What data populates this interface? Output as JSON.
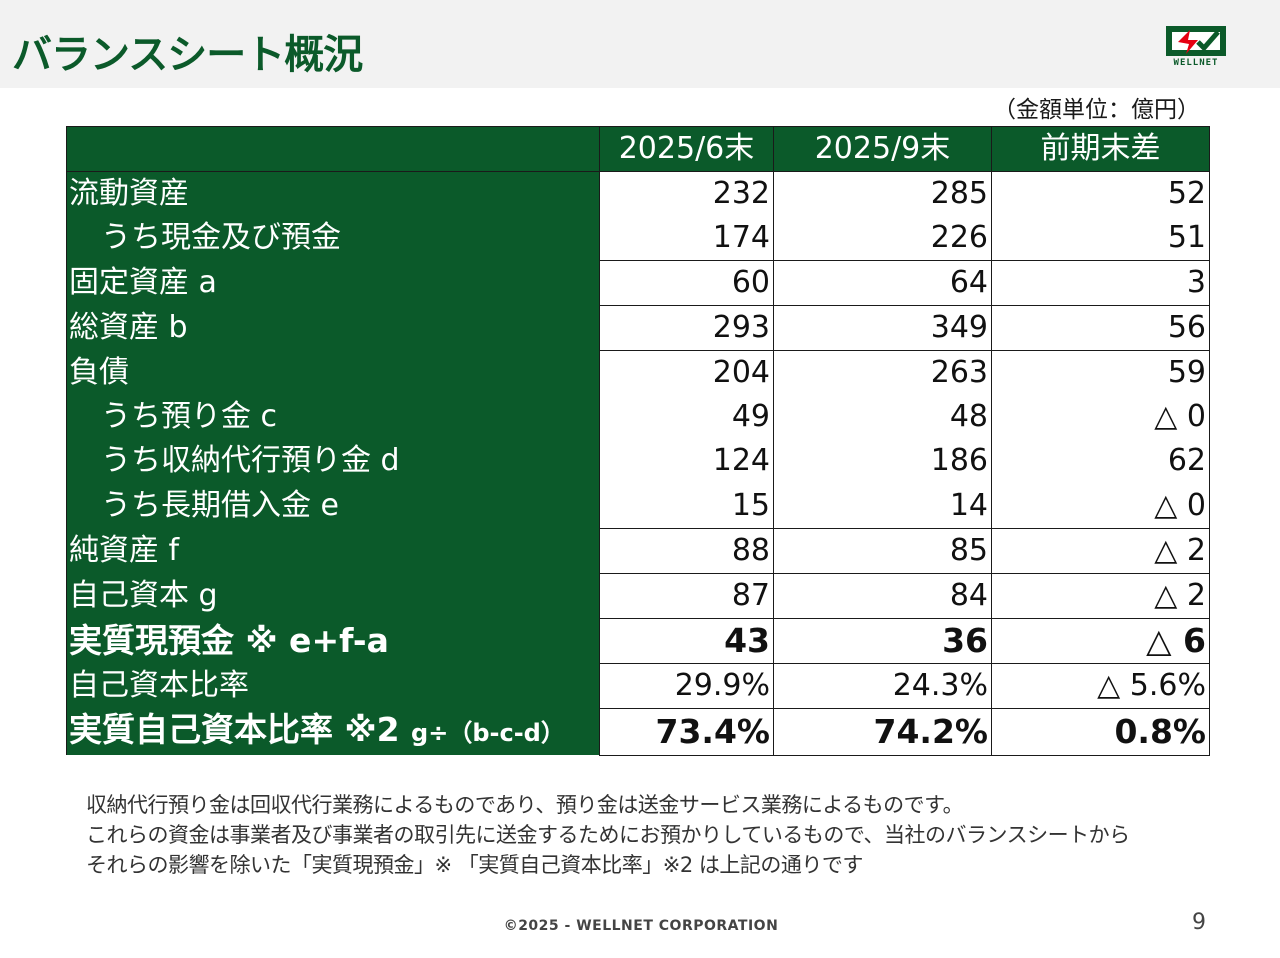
{
  "title": "バランスシート概況",
  "logo": {
    "text": "WELLNET",
    "colors": {
      "green": "#0b5a2a",
      "red": "#e60012"
    }
  },
  "unit_note": "（金額単位：億円）",
  "table": {
    "headers": [
      "",
      "2025/6末",
      "2025/9末",
      "前期末差"
    ],
    "rows": [
      {
        "label": "流動資産",
        "values": [
          "232",
          "285",
          "52"
        ]
      },
      {
        "label": "うち現金及び預金",
        "values": [
          "174",
          "226",
          "51"
        ]
      },
      {
        "label": "固定資産 a",
        "values": [
          "60",
          "64",
          "3"
        ]
      },
      {
        "label": "総資産 b",
        "values": [
          "293",
          "349",
          "56"
        ]
      },
      {
        "label": "負債",
        "values": [
          "204",
          "263",
          "59"
        ]
      },
      {
        "label": "うち預り金 c",
        "values": [
          "49",
          "48",
          "△ 0"
        ]
      },
      {
        "label": "うち収納代行預り金 d",
        "values": [
          "124",
          "186",
          "62"
        ]
      },
      {
        "label": "うち長期借入金 e",
        "values": [
          "15",
          "14",
          "△ 0"
        ]
      },
      {
        "label": "純資産 f",
        "values": [
          "88",
          "85",
          "△ 2"
        ]
      },
      {
        "label": "自己資本 g",
        "values": [
          "87",
          "84",
          "△ 2"
        ]
      },
      {
        "label": "実質現預金 ※ e+f-a",
        "values": [
          "43",
          "36",
          "△ 6"
        ]
      },
      {
        "label": "自己資本比率",
        "values": [
          "29.9%",
          "24.3%",
          "△ 5.6%"
        ]
      },
      {
        "label": "実質自己資本比率 ※2",
        "label_suffix": "g÷（b-c-d）",
        "values": [
          "73.4%",
          "74.2%",
          "0.8%"
        ]
      }
    ]
  },
  "notes": [
    "収納代行預り金は回収代行業務によるものであり、預り金は送金サービス業務によるものです。",
    "これらの資金は事業者及び事業者の取引先に送金するためにお預かりしているもので、当社のバランスシートから",
    "それらの影響を除いた「実質現預金」※ 「実質自己資本比率」※2 は上記の通りです"
  ],
  "footer": "©2025 - WELLNET CORPORATION",
  "page_number": "9"
}
